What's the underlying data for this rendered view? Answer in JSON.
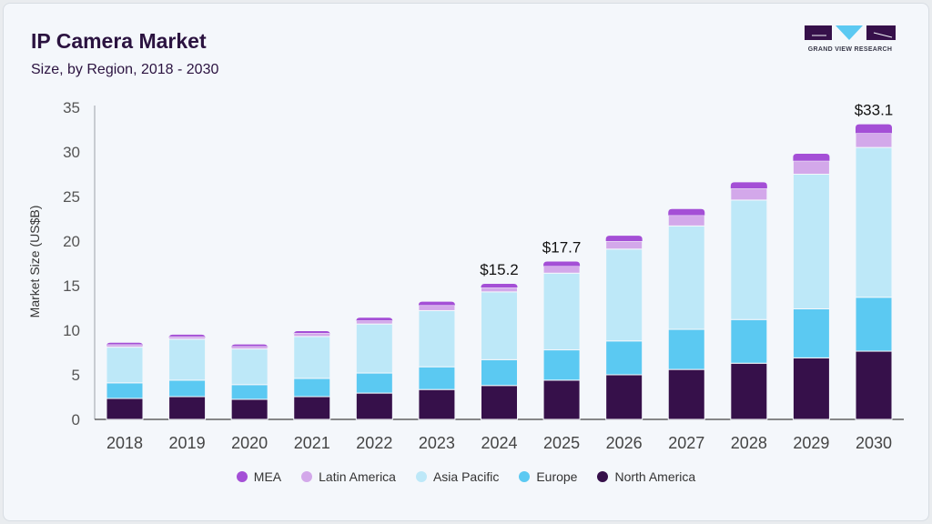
{
  "header": {
    "title": "IP Camera Market",
    "subtitle": "Size, by Region, 2018 - 2030"
  },
  "logo": {
    "text": "GRAND VIEW RESEARCH"
  },
  "chart_data": {
    "type": "bar",
    "stacked": true,
    "ylabel": "Market Size (US$B)",
    "ylim": [
      0,
      35
    ],
    "yticks": [
      0,
      5,
      10,
      15,
      20,
      25,
      30,
      35
    ],
    "grid": false,
    "legend_position": "bottom",
    "categories": [
      "2018",
      "2019",
      "2020",
      "2021",
      "2022",
      "2023",
      "2024",
      "2025",
      "2026",
      "2027",
      "2028",
      "2029",
      "2030"
    ],
    "series": [
      {
        "name": "North America",
        "color": "#36104a",
        "values": [
          2.35,
          2.55,
          2.25,
          2.55,
          2.95,
          3.35,
          3.8,
          4.4,
          5.0,
          5.6,
          6.3,
          6.9,
          7.65
        ]
      },
      {
        "name": "Europe",
        "color": "#5bc9f2",
        "values": [
          1.75,
          1.85,
          1.65,
          2.05,
          2.25,
          2.55,
          2.9,
          3.4,
          3.8,
          4.5,
          4.9,
          5.5,
          6.05
        ]
      },
      {
        "name": "Asia Pacific",
        "color": "#bde8f8",
        "values": [
          4.0,
          4.6,
          4.0,
          4.7,
          5.5,
          6.3,
          7.6,
          8.6,
          10.3,
          11.6,
          13.4,
          15.1,
          16.8
        ]
      },
      {
        "name": "Latin America",
        "color": "#d3a8ea",
        "values": [
          0.3,
          0.3,
          0.3,
          0.4,
          0.4,
          0.6,
          0.5,
          0.8,
          0.9,
          1.2,
          1.3,
          1.5,
          1.6
        ]
      },
      {
        "name": "MEA",
        "color": "#a44fd6",
        "values": [
          0.2,
          0.2,
          0.2,
          0.2,
          0.3,
          0.4,
          0.4,
          0.5,
          0.6,
          0.7,
          0.7,
          0.8,
          1.0
        ]
      }
    ],
    "data_labels": [
      {
        "category": "2024",
        "text": "$15.2"
      },
      {
        "category": "2025",
        "text": "$17.7"
      },
      {
        "category": "2030",
        "text": "$33.1"
      }
    ],
    "legend_order": [
      "MEA",
      "Latin America",
      "Asia Pacific",
      "Europe",
      "North America"
    ]
  }
}
